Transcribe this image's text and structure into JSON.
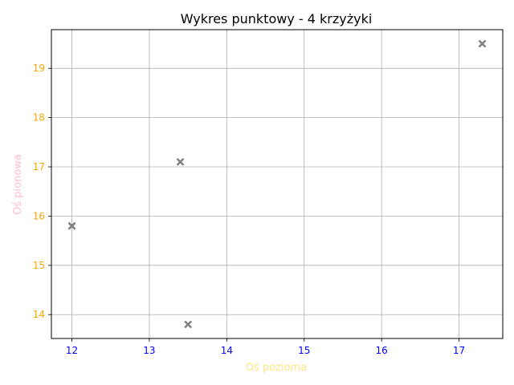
{
  "chart_data": {
    "type": "scatter",
    "title": "Wykres punktowy - 4 krzyżyki",
    "xlabel": "Oś pozioma",
    "ylabel": "Oś pionowa",
    "xlim": [
      11.735,
      17.565
    ],
    "ylim": [
      13.515,
      19.785
    ],
    "xticks": [
      12,
      13,
      14,
      15,
      16,
      17
    ],
    "yticks": [
      14,
      15,
      16,
      17,
      18,
      19
    ],
    "grid": true,
    "marker": "x",
    "series": [
      {
        "points": [
          {
            "x": 12.0,
            "y": 15.8
          },
          {
            "x": 13.4,
            "y": 17.1
          },
          {
            "x": 13.5,
            "y": 13.8
          },
          {
            "x": 17.3,
            "y": 19.5
          }
        ]
      }
    ],
    "colors": {
      "marker": "#808080",
      "grid": "#b0b0b0",
      "axes": "#000000",
      "xtick_label": "#0000ff",
      "ytick_label": "#ffa500",
      "xlabel": "#ffe680",
      "ylabel": "#ffc0cb"
    }
  }
}
